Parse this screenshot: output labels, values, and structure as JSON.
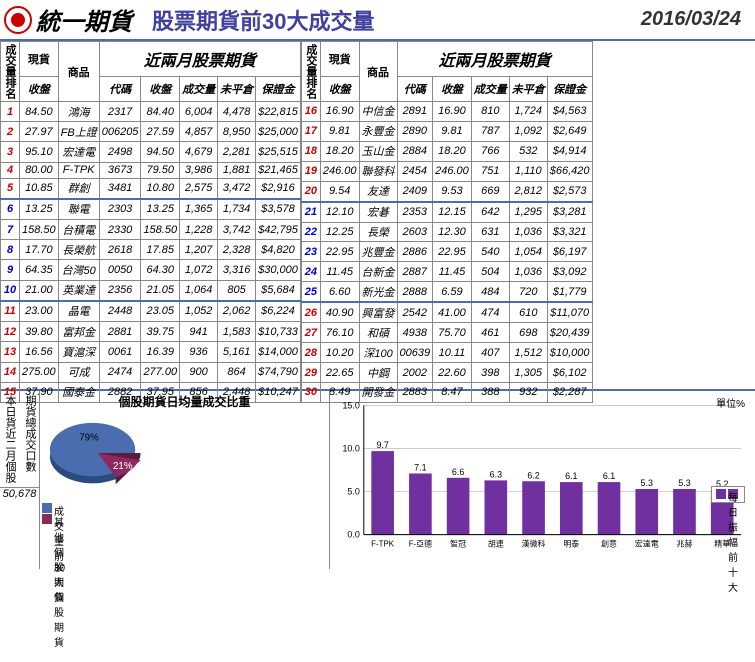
{
  "header": {
    "brand": "統一期貨",
    "title": "股票期貨前30大成交量",
    "date": "2016/03/24"
  },
  "table_headers": {
    "rank": "成交量排名",
    "spot": "現貨",
    "close": "收盤",
    "product": "商品",
    "group": "近兩月股票期貨",
    "code": "代碼",
    "fclose": "收盤",
    "vol": "成交量",
    "oi": "未平倉",
    "margin": "保證金"
  },
  "rows_left": [
    {
      "r": 1,
      "spot": "84.50",
      "prod": "鴻海",
      "code": "2317",
      "close": "84.40",
      "vol": "6,004",
      "oi": "4,478",
      "mg": "$22,815",
      "cls": "rank-a"
    },
    {
      "r": 2,
      "spot": "27.97",
      "prod": "FB上證",
      "code": "006205",
      "close": "27.59",
      "vol": "4,857",
      "oi": "8,950",
      "mg": "$25,000",
      "cls": "rank-a"
    },
    {
      "r": 3,
      "spot": "95.10",
      "prod": "宏達電",
      "code": "2498",
      "close": "94.50",
      "vol": "4,679",
      "oi": "2,281",
      "mg": "$25,515",
      "cls": "rank-a"
    },
    {
      "r": 4,
      "spot": "80.00",
      "prod": "F-TPK",
      "code": "3673",
      "close": "79.50",
      "vol": "3,986",
      "oi": "1,881",
      "mg": "$21,465",
      "cls": "rank-a"
    },
    {
      "r": 5,
      "spot": "10.85",
      "prod": "群創",
      "code": "3481",
      "close": "10.80",
      "vol": "2,575",
      "oi": "3,472",
      "mg": "$2,916",
      "cls": "rank-a"
    },
    {
      "r": 6,
      "spot": "13.25",
      "prod": "聯電",
      "code": "2303",
      "close": "13.25",
      "vol": "1,365",
      "oi": "1,734",
      "mg": "$3,578",
      "cls": "rank-b"
    },
    {
      "r": 7,
      "spot": "158.50",
      "prod": "台積電",
      "code": "2330",
      "close": "158.50",
      "vol": "1,228",
      "oi": "3,742",
      "mg": "$42,795",
      "cls": "rank-b"
    },
    {
      "r": 8,
      "spot": "17.70",
      "prod": "長榮航",
      "code": "2618",
      "close": "17.85",
      "vol": "1,207",
      "oi": "2,328",
      "mg": "$4,820",
      "cls": "rank-b"
    },
    {
      "r": 9,
      "spot": "64.35",
      "prod": "台灣50",
      "code": "0050",
      "close": "64.30",
      "vol": "1,072",
      "oi": "3,316",
      "mg": "$30,000",
      "cls": "rank-b"
    },
    {
      "r": 10,
      "spot": "21.00",
      "prod": "英業達",
      "code": "2356",
      "close": "21.05",
      "vol": "1,064",
      "oi": "805",
      "mg": "$5,684",
      "cls": "rank-b"
    },
    {
      "r": 11,
      "spot": "23.00",
      "prod": "晶電",
      "code": "2448",
      "close": "23.05",
      "vol": "1,052",
      "oi": "2,062",
      "mg": "$6,224",
      "cls": "rank-c"
    },
    {
      "r": 12,
      "spot": "39.80",
      "prod": "富邦金",
      "code": "2881",
      "close": "39.75",
      "vol": "941",
      "oi": "1,583",
      "mg": "$10,733",
      "cls": "rank-c"
    },
    {
      "r": 13,
      "spot": "16.56",
      "prod": "寶滬深",
      "code": "0061",
      "close": "16.39",
      "vol": "936",
      "oi": "5,161",
      "mg": "$14,000",
      "cls": "rank-c"
    },
    {
      "r": 14,
      "spot": "275.00",
      "prod": "可成",
      "code": "2474",
      "close": "277.00",
      "vol": "900",
      "oi": "864",
      "mg": "$74,790",
      "cls": "rank-c"
    },
    {
      "r": 15,
      "spot": "37.90",
      "prod": "國泰金",
      "code": "2882",
      "close": "37.95",
      "vol": "856",
      "oi": "2,448",
      "mg": "$10,247",
      "cls": "rank-c"
    }
  ],
  "rows_right": [
    {
      "r": 16,
      "spot": "16.90",
      "prod": "中信金",
      "code": "2891",
      "close": "16.90",
      "vol": "810",
      "oi": "1,724",
      "mg": "$4,563",
      "cls": "rank-a"
    },
    {
      "r": 17,
      "spot": "9.81",
      "prod": "永豐金",
      "code": "2890",
      "close": "9.81",
      "vol": "787",
      "oi": "1,092",
      "mg": "$2,649",
      "cls": "rank-a"
    },
    {
      "r": 18,
      "spot": "18.20",
      "prod": "玉山金",
      "code": "2884",
      "close": "18.20",
      "vol": "766",
      "oi": "532",
      "mg": "$4,914",
      "cls": "rank-a"
    },
    {
      "r": 19,
      "spot": "246.00",
      "prod": "聯發科",
      "code": "2454",
      "close": "246.00",
      "vol": "751",
      "oi": "1,110",
      "mg": "$66,420",
      "cls": "rank-a"
    },
    {
      "r": 20,
      "spot": "9.54",
      "prod": "友達",
      "code": "2409",
      "close": "9.53",
      "vol": "669",
      "oi": "2,812",
      "mg": "$2,573",
      "cls": "rank-a"
    },
    {
      "r": 21,
      "spot": "12.10",
      "prod": "宏碁",
      "code": "2353",
      "close": "12.15",
      "vol": "642",
      "oi": "1,295",
      "mg": "$3,281",
      "cls": "rank-b"
    },
    {
      "r": 22,
      "spot": "12.25",
      "prod": "長榮",
      "code": "2603",
      "close": "12.30",
      "vol": "631",
      "oi": "1,036",
      "mg": "$3,321",
      "cls": "rank-b"
    },
    {
      "r": 23,
      "spot": "22.95",
      "prod": "兆豐金",
      "code": "2886",
      "close": "22.95",
      "vol": "540",
      "oi": "1,054",
      "mg": "$6,197",
      "cls": "rank-b"
    },
    {
      "r": 24,
      "spot": "11.45",
      "prod": "台新金",
      "code": "2887",
      "close": "11.45",
      "vol": "504",
      "oi": "1,036",
      "mg": "$3,092",
      "cls": "rank-b"
    },
    {
      "r": 25,
      "spot": "6.60",
      "prod": "新光金",
      "code": "2888",
      "close": "6.59",
      "vol": "484",
      "oi": "720",
      "mg": "$1,779",
      "cls": "rank-b"
    },
    {
      "r": 26,
      "spot": "40.90",
      "prod": "興富發",
      "code": "2542",
      "close": "41.00",
      "vol": "474",
      "oi": "610",
      "mg": "$11,070",
      "cls": "rank-c"
    },
    {
      "r": 27,
      "spot": "76.10",
      "prod": "和碩",
      "code": "4938",
      "close": "75.70",
      "vol": "461",
      "oi": "698",
      "mg": "$20,439",
      "cls": "rank-c"
    },
    {
      "r": 28,
      "spot": "10.20",
      "prod": "深100",
      "code": "00639",
      "close": "10.11",
      "vol": "407",
      "oi": "1,512",
      "mg": "$10,000",
      "cls": "rank-c"
    },
    {
      "r": 29,
      "spot": "22.65",
      "prod": "中鋼",
      "code": "2002",
      "close": "22.60",
      "vol": "398",
      "oi": "1,305",
      "mg": "$6,102",
      "cls": "rank-c"
    },
    {
      "r": 30,
      "spot": "8.49",
      "prod": "開發金",
      "code": "2883",
      "close": "8.47",
      "vol": "388",
      "oi": "932",
      "mg": "$2,287",
      "cls": "rank-c"
    }
  ],
  "bottom_left": {
    "label1": "本日貨近二月個股",
    "label2": "期貨總成交口數",
    "value": "50,678"
  },
  "pie": {
    "title": "個股期貨日均量成交比重",
    "slices": [
      {
        "label": "成交量前30大個股期貨",
        "pct": 79,
        "color": "#4a6db0"
      },
      {
        "label": "其他個股期貨",
        "pct": 21,
        "color": "#8b2a5e"
      }
    ]
  },
  "bar": {
    "unit": "單位%",
    "legend": "每日振幅前十大",
    "ylim": [
      0,
      15
    ],
    "ytick_step": 5,
    "bar_color": "#7030a0",
    "categories": [
      "F-TPK",
      "F-亞德",
      "智冠",
      "胡連",
      "漢微科",
      "明泰",
      "創意",
      "宏達電",
      "兆赫",
      "精華"
    ],
    "values": [
      9.7,
      7.1,
      6.6,
      6.3,
      6.2,
      6.1,
      6.1,
      5.3,
      5.3,
      5.2
    ]
  }
}
